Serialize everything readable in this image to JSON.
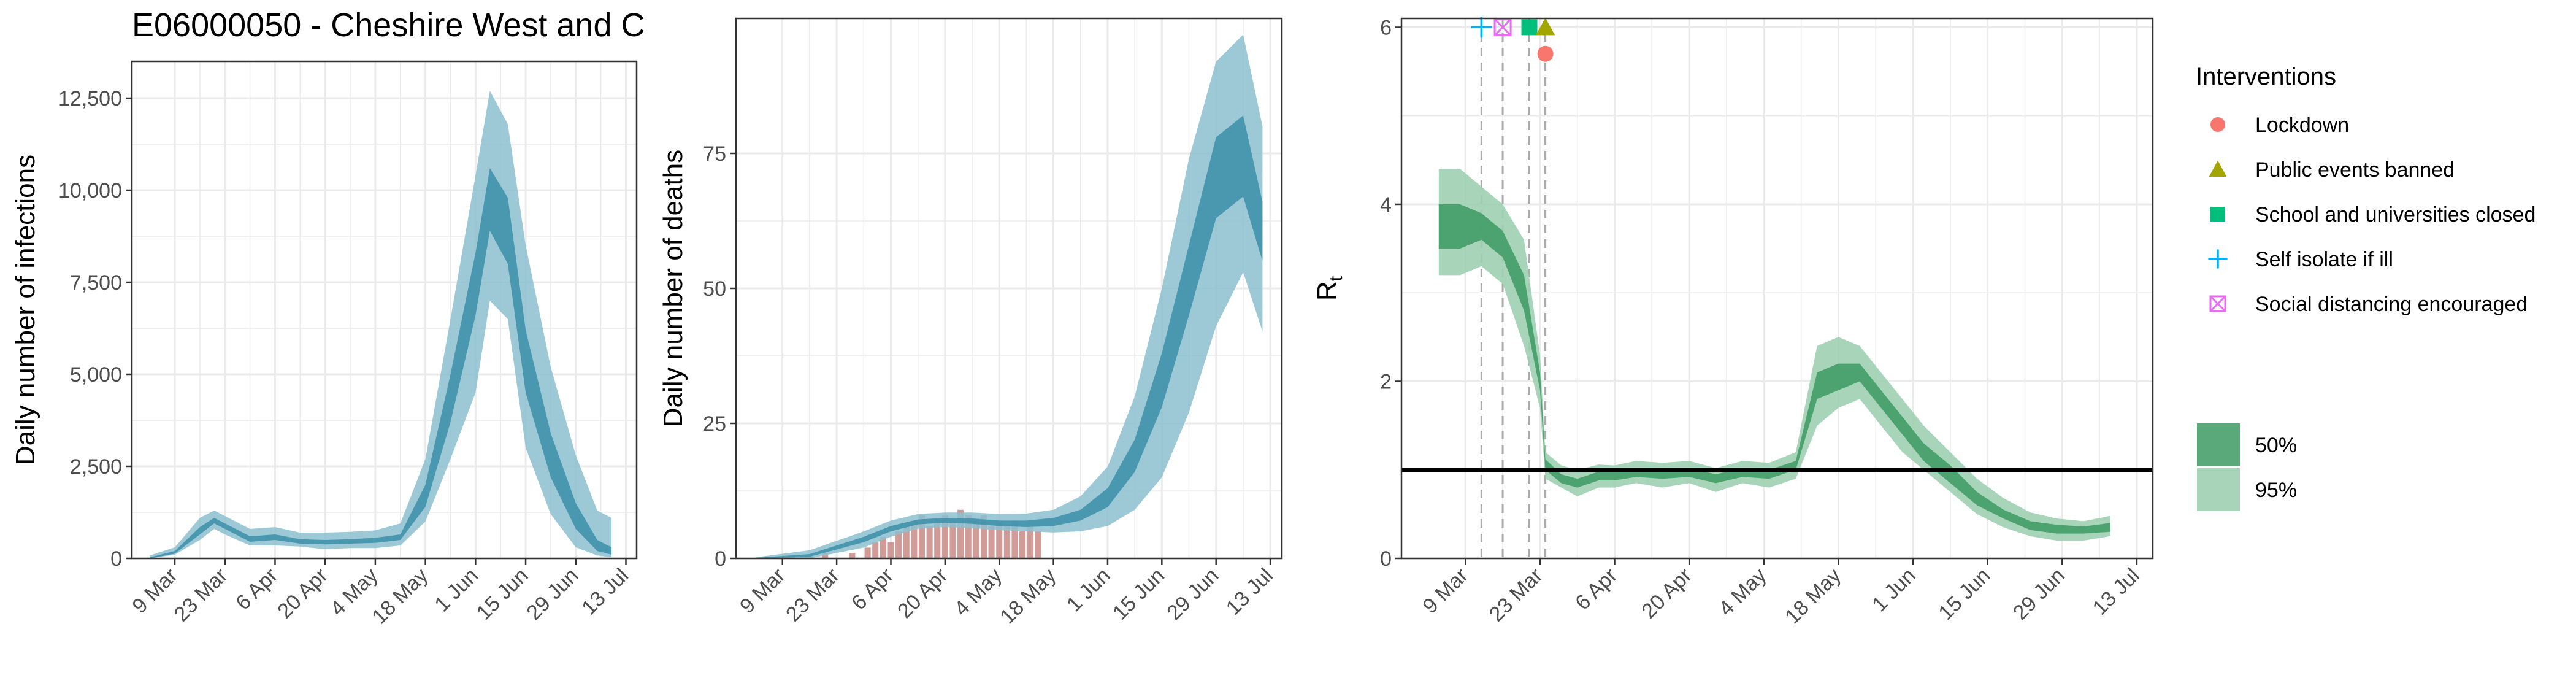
{
  "figure_title": "E06000050 - Cheshire West and C",
  "colors": {
    "infections_band": "#a7cfdc",
    "infections_inner": "#3c8ea9",
    "infections_outer": "#8cc0d0",
    "deaths_bar": "#c98b85",
    "rt_outer": "#9fd0b1",
    "rt_inner": "#3c9a63",
    "grid": "#ebebeb",
    "lockdown": "#F8766D",
    "public_events": "#A3A500",
    "school": "#00BF7D",
    "self_isolate": "#00B0F6",
    "social_distancing": "#E76BF3"
  },
  "legend": {
    "interventions_title": "Interventions",
    "items": [
      {
        "label": "Lockdown",
        "icon": "circle-icon",
        "color_key": "lockdown"
      },
      {
        "label": "Public events banned",
        "icon": "triangle-icon",
        "color_key": "public_events"
      },
      {
        "label": "School and universities closed",
        "icon": "square-icon",
        "color_key": "school"
      },
      {
        "label": "Self isolate if ill",
        "icon": "plus-icon",
        "color_key": "self_isolate"
      },
      {
        "label": "Social distancing encouraged",
        "icon": "boxed-x-icon",
        "color_key": "social_distancing"
      }
    ],
    "bands": [
      {
        "label": "50%",
        "color_key": "rt_inner"
      },
      {
        "label": "95%",
        "color_key": "rt_outer"
      }
    ]
  },
  "chart_data": [
    {
      "type": "area",
      "id": "infections",
      "ylabel": "Daily number of infections",
      "xlabel": "",
      "x_ticks": [
        "9 Mar",
        "23 Mar",
        "6 Apr",
        "20 Apr",
        "4 May",
        "18 May",
        "1 Jun",
        "15 Jun",
        "29 Jun",
        "13 Jul"
      ],
      "xlim": [
        "2020-02-26",
        "2020-07-16"
      ],
      "ylim": [
        0,
        13500
      ],
      "y_ticks": [
        0,
        2500,
        5000,
        7500,
        10000,
        12500
      ],
      "y_tick_labels": [
        "0",
        "2,500",
        "5,000",
        "7,500",
        "10,000",
        "12,500"
      ],
      "series": [
        {
          "x": [
            "2020-03-02",
            "2020-03-09",
            "2020-03-16",
            "2020-03-20",
            "2020-03-23",
            "2020-03-30",
            "2020-04-06",
            "2020-04-13",
            "2020-04-20",
            "2020-04-27",
            "2020-05-04",
            "2020-05-11",
            "2020-05-18",
            "2020-05-25",
            "2020-06-01",
            "2020-06-05",
            "2020-06-10",
            "2020-06-15",
            "2020-06-22",
            "2020-06-29",
            "2020-07-05",
            "2020-07-09"
          ],
          "lower95": [
            0,
            100,
            500,
            800,
            650,
            350,
            350,
            320,
            250,
            280,
            280,
            350,
            1000,
            2700,
            4500,
            7000,
            6500,
            3000,
            1200,
            300,
            80,
            30
          ],
          "lower50": [
            0,
            130,
            650,
            950,
            800,
            450,
            500,
            400,
            380,
            400,
            420,
            500,
            1400,
            3700,
            6600,
            8900,
            8000,
            4500,
            2200,
            800,
            200,
            100
          ],
          "upper50": [
            30,
            200,
            850,
            1100,
            950,
            600,
            650,
            520,
            500,
            520,
            560,
            650,
            2000,
            5000,
            8300,
            10600,
            9800,
            6200,
            3400,
            1500,
            500,
            300
          ],
          "upper95": [
            80,
            300,
            1100,
            1300,
            1150,
            800,
            850,
            700,
            700,
            720,
            760,
            950,
            2700,
            6500,
            10400,
            12700,
            11800,
            8500,
            5200,
            2800,
            1300,
            1100
          ]
        }
      ]
    },
    {
      "type": "area",
      "id": "deaths",
      "ylabel": "Daily number of deaths",
      "xlabel": "",
      "x_ticks": [
        "9 Mar",
        "23 Mar",
        "6 Apr",
        "20 Apr",
        "4 May",
        "18 May",
        "1 Jun",
        "15 Jun",
        "29 Jun",
        "13 Jul"
      ],
      "xlim": [
        "2020-02-26",
        "2020-07-16"
      ],
      "ylim": [
        0,
        100
      ],
      "y_ticks": [
        0,
        25,
        50,
        75
      ],
      "y_tick_labels": [
        "0",
        "25",
        "50",
        "75"
      ],
      "series": [
        {
          "x": [
            "2020-03-02",
            "2020-03-16",
            "2020-03-30",
            "2020-04-06",
            "2020-04-13",
            "2020-04-20",
            "2020-04-27",
            "2020-05-04",
            "2020-05-11",
            "2020-05-18",
            "2020-05-25",
            "2020-06-01",
            "2020-06-08",
            "2020-06-15",
            "2020-06-22",
            "2020-06-29",
            "2020-07-06",
            "2020-07-11"
          ],
          "lower95": [
            0,
            0,
            2,
            4,
            5.5,
            5.8,
            5.6,
            5.2,
            5,
            4.8,
            5,
            6,
            9,
            15,
            27,
            43,
            53,
            42
          ],
          "lower50": [
            0,
            0.3,
            3,
            5,
            6.3,
            6.6,
            6.4,
            6,
            5.8,
            6,
            7,
            9.5,
            16,
            28,
            45,
            63,
            67,
            55
          ],
          "upper50": [
            0.1,
            0.8,
            4,
            6,
            7.2,
            7.5,
            7.4,
            7,
            7,
            7.5,
            9,
            13,
            22,
            38,
            58,
            78,
            82,
            66
          ],
          "upper95": [
            0.2,
            1.5,
            5,
            7,
            8.2,
            8.5,
            8.5,
            8.2,
            8.3,
            9,
            11.5,
            17,
            30,
            50,
            74,
            92,
            97,
            80
          ]
        }
      ],
      "bars": {
        "x": [
          "2020-03-20",
          "2020-03-27",
          "2020-03-31",
          "2020-04-02",
          "2020-04-04",
          "2020-04-06",
          "2020-04-08",
          "2020-04-10",
          "2020-04-12",
          "2020-04-14",
          "2020-04-16",
          "2020-04-18",
          "2020-04-20",
          "2020-04-22",
          "2020-04-24",
          "2020-04-26",
          "2020-04-28",
          "2020-04-30",
          "2020-05-02",
          "2020-05-04",
          "2020-05-06",
          "2020-05-08",
          "2020-05-10",
          "2020-05-12",
          "2020-05-14"
        ],
        "values": [
          1,
          1,
          2,
          3,
          4,
          3,
          5,
          6,
          7,
          8,
          6,
          7,
          8,
          7,
          9,
          8,
          7,
          8,
          6,
          7,
          6,
          7,
          5,
          6,
          5
        ]
      }
    },
    {
      "type": "area",
      "id": "rt",
      "ylabel": "Rt",
      "xlabel": "",
      "x_ticks": [
        "9 Mar",
        "23 Mar",
        "6 Apr",
        "20 Apr",
        "4 May",
        "18 May",
        "1 Jun",
        "15 Jun",
        "29 Jun",
        "13 Jul"
      ],
      "xlim": [
        "2020-02-26",
        "2020-07-16"
      ],
      "ylim": [
        0,
        6.1
      ],
      "y_ticks": [
        0,
        2,
        4,
        6
      ],
      "y_tick_labels": [
        "0",
        "2",
        "4",
        "6"
      ],
      "reference_line": 1,
      "series": [
        {
          "x": [
            "2020-03-04",
            "2020-03-08",
            "2020-03-12",
            "2020-03-16",
            "2020-03-20",
            "2020-03-23",
            "2020-03-24",
            "2020-03-27",
            "2020-03-30",
            "2020-04-03",
            "2020-04-06",
            "2020-04-10",
            "2020-04-15",
            "2020-04-20",
            "2020-04-25",
            "2020-04-30",
            "2020-05-05",
            "2020-05-10",
            "2020-05-14",
            "2020-05-18",
            "2020-05-22",
            "2020-05-26",
            "2020-05-30",
            "2020-06-03",
            "2020-06-08",
            "2020-06-13",
            "2020-06-18",
            "2020-06-23",
            "2020-06-28",
            "2020-07-03",
            "2020-07-08"
          ],
          "lower95": [
            3.2,
            3.2,
            3.3,
            3.1,
            2.4,
            1.7,
            0.9,
            0.8,
            0.7,
            0.8,
            0.8,
            0.85,
            0.8,
            0.85,
            0.75,
            0.85,
            0.8,
            0.9,
            1.5,
            1.7,
            1.8,
            1.5,
            1.2,
            1.0,
            0.75,
            0.5,
            0.35,
            0.25,
            0.2,
            0.2,
            0.25
          ],
          "lower50": [
            3.5,
            3.5,
            3.6,
            3.4,
            2.8,
            1.9,
            1.0,
            0.85,
            0.8,
            0.88,
            0.88,
            0.92,
            0.9,
            0.92,
            0.85,
            0.92,
            0.9,
            1.0,
            1.8,
            1.9,
            2.0,
            1.7,
            1.4,
            1.1,
            0.85,
            0.6,
            0.45,
            0.32,
            0.28,
            0.28,
            0.3
          ],
          "upper50": [
            4.0,
            4.0,
            3.9,
            3.7,
            3.2,
            2.1,
            1.12,
            0.95,
            0.9,
            0.98,
            0.98,
            1.02,
            1.0,
            1.02,
            0.95,
            1.02,
            1.0,
            1.1,
            2.1,
            2.2,
            2.2,
            1.9,
            1.6,
            1.3,
            1.05,
            0.75,
            0.55,
            0.42,
            0.38,
            0.36,
            0.4
          ],
          "upper95": [
            4.4,
            4.4,
            4.2,
            4.0,
            3.6,
            2.3,
            1.2,
            1.05,
            1.0,
            1.06,
            1.05,
            1.1,
            1.08,
            1.1,
            1.02,
            1.1,
            1.08,
            1.2,
            2.4,
            2.5,
            2.4,
            2.1,
            1.8,
            1.5,
            1.2,
            0.9,
            0.68,
            0.52,
            0.45,
            0.42,
            0.48
          ]
        }
      ],
      "interventions": [
        {
          "name": "Self isolate if ill",
          "date": "2020-03-12",
          "icon": "plus-icon",
          "color_key": "self_isolate",
          "marker_y": 6
        },
        {
          "name": "Social distancing encouraged",
          "date": "2020-03-16",
          "icon": "boxed-x-icon",
          "color_key": "social_distancing",
          "marker_y": 6
        },
        {
          "name": "School and universities closed",
          "date": "2020-03-21",
          "icon": "square-icon",
          "color_key": "school",
          "marker_y": 6
        },
        {
          "name": "Public events banned",
          "date": "2020-03-24",
          "icon": "triangle-icon",
          "color_key": "public_events",
          "marker_y": 6
        },
        {
          "name": "Lockdown",
          "date": "2020-03-24",
          "icon": "circle-icon",
          "color_key": "lockdown",
          "marker_y": 5.7
        }
      ]
    }
  ]
}
